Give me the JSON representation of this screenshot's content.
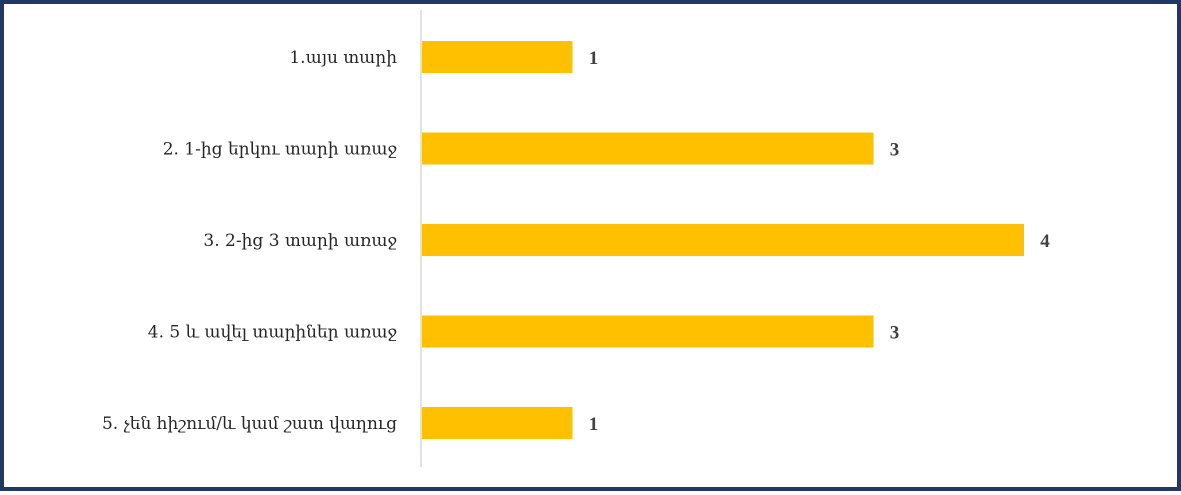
{
  "chart_data": {
    "type": "bar",
    "orientation": "horizontal",
    "categories": [
      "1.այս տարի",
      "2. 1-ից երկու տարի առաջ",
      "3. 2-ից 3 տարի առաջ",
      "4. 5 և ավել տարիներ առաջ",
      "5. չեն հիշում/և կամ շատ վաղուց"
    ],
    "values": [
      1,
      3,
      4,
      3,
      1
    ],
    "data_labels": [
      "1",
      "3",
      "4",
      "3",
      "1"
    ],
    "xlim": [
      0,
      4
    ],
    "grid": false,
    "legend": "none",
    "bar_color": "#ffc000",
    "axis_color": "#d9d9d9",
    "frame_color": "#1f3864"
  }
}
